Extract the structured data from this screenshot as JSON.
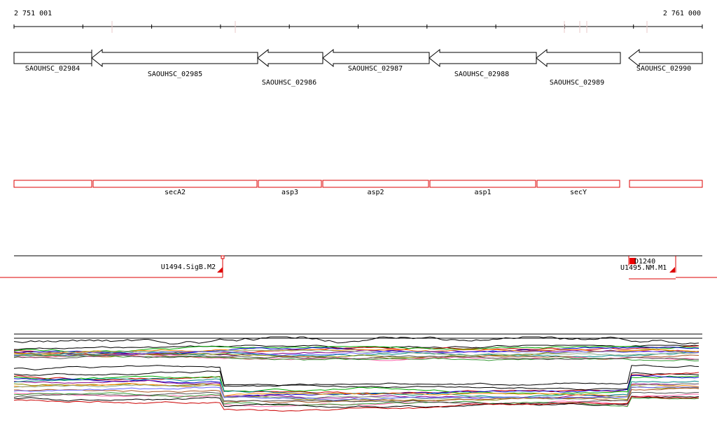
{
  "ruler": {
    "start_label": "2 751 001",
    "end_label": "2 761 000"
  },
  "genes": [
    "SAOUHSC_02984",
    "SAOUHSC_02985",
    "SAOUHSC_02986",
    "SAOUHSC_02987",
    "SAOUHSC_02988",
    "SAOUHSC_02989",
    "SAOUHSC_02990"
  ],
  "operons": [
    "secA2",
    "asp3",
    "asp2",
    "asp1",
    "secY"
  ],
  "transcription_units": [
    "U1494.SigB.M2",
    "D1240",
    "U1495.NM.M1"
  ]
}
